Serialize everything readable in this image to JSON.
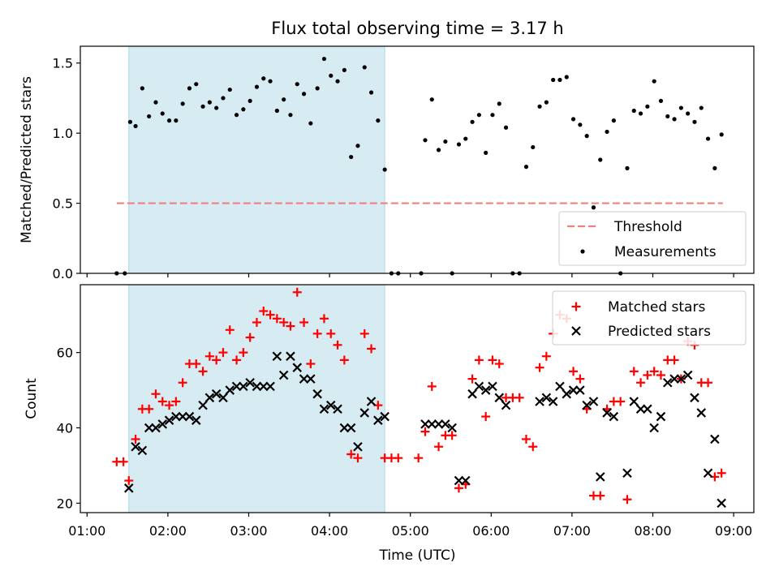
{
  "title": "Flux total observing time = 3.17 h",
  "xlabel": "Time (UTC)",
  "x_ticks": [
    "01:00",
    "02:00",
    "03:00",
    "04:00",
    "05:00",
    "06:00",
    "07:00",
    "08:00",
    "09:00"
  ],
  "colors": {
    "span": "#add8e6",
    "threshold": "#f08080",
    "measurement": "#000000",
    "matched": "#ff0000",
    "predicted": "#000000"
  },
  "chart_data": [
    {
      "type": "scatter",
      "ylabel": "Matched/Predicted stars",
      "y_ticks": [
        "0.0",
        "0.5",
        "1.0",
        "1.5"
      ],
      "xlim": [
        "00:55",
        "09:15"
      ],
      "ylim": [
        0,
        1.62
      ],
      "shaded_span": [
        "01:31",
        "04:41"
      ],
      "legend": {
        "position": "lower-right",
        "entries": [
          "Threshold",
          "Measurements"
        ]
      },
      "threshold": {
        "name": "Threshold",
        "y": 0.5,
        "x_range": [
          "01:22",
          "08:52"
        ]
      },
      "measurements": {
        "name": "Measurements",
        "points": [
          [
            "01:22",
            0.0
          ],
          [
            "01:28",
            0.0
          ],
          [
            "01:32",
            1.08
          ],
          [
            "01:36",
            1.05
          ],
          [
            "01:41",
            1.32
          ],
          [
            "01:46",
            1.12
          ],
          [
            "01:51",
            1.22
          ],
          [
            "01:56",
            1.14
          ],
          [
            "02:01",
            1.09
          ],
          [
            "02:06",
            1.09
          ],
          [
            "02:11",
            1.21
          ],
          [
            "02:16",
            1.32
          ],
          [
            "02:21",
            1.35
          ],
          [
            "02:26",
            1.19
          ],
          [
            "02:31",
            1.22
          ],
          [
            "02:36",
            1.18
          ],
          [
            "02:41",
            1.25
          ],
          [
            "02:46",
            1.31
          ],
          [
            "02:51",
            1.13
          ],
          [
            "02:56",
            1.17
          ],
          [
            "03:01",
            1.23
          ],
          [
            "03:06",
            1.33
          ],
          [
            "03:11",
            1.39
          ],
          [
            "03:16",
            1.37
          ],
          [
            "03:21",
            1.16
          ],
          [
            "03:26",
            1.24
          ],
          [
            "03:31",
            1.13
          ],
          [
            "03:36",
            1.35
          ],
          [
            "03:41",
            1.28
          ],
          [
            "03:46",
            1.07
          ],
          [
            "03:51",
            1.32
          ],
          [
            "03:56",
            1.53
          ],
          [
            "04:01",
            1.41
          ],
          [
            "04:06",
            1.37
          ],
          [
            "04:11",
            1.45
          ],
          [
            "04:16",
            0.83
          ],
          [
            "04:21",
            0.91
          ],
          [
            "04:26",
            1.47
          ],
          [
            "04:31",
            1.29
          ],
          [
            "04:36",
            1.09
          ],
          [
            "04:41",
            0.74
          ],
          [
            "04:46",
            0.0
          ],
          [
            "04:51",
            0.0
          ],
          [
            "05:08",
            0.0
          ],
          [
            "05:11",
            0.95
          ],
          [
            "05:16",
            1.24
          ],
          [
            "05:21",
            0.88
          ],
          [
            "05:26",
            0.94
          ],
          [
            "05:31",
            0.0
          ],
          [
            "05:36",
            0.92
          ],
          [
            "05:41",
            0.96
          ],
          [
            "05:46",
            1.08
          ],
          [
            "05:51",
            1.13
          ],
          [
            "05:56",
            0.86
          ],
          [
            "06:01",
            1.13
          ],
          [
            "06:06",
            1.21
          ],
          [
            "06:11",
            1.04
          ],
          [
            "06:16",
            0.0
          ],
          [
            "06:21",
            0.0
          ],
          [
            "06:26",
            0.76
          ],
          [
            "06:31",
            0.9
          ],
          [
            "06:36",
            1.19
          ],
          [
            "06:41",
            1.22
          ],
          [
            "06:46",
            1.38
          ],
          [
            "06:51",
            1.38
          ],
          [
            "06:56",
            1.4
          ],
          [
            "07:01",
            1.1
          ],
          [
            "07:06",
            1.06
          ],
          [
            "07:11",
            0.98
          ],
          [
            "07:16",
            0.47
          ],
          [
            "07:21",
            0.81
          ],
          [
            "07:26",
            1.01
          ],
          [
            "07:31",
            1.09
          ],
          [
            "07:36",
            0.0
          ],
          [
            "07:41",
            0.75
          ],
          [
            "07:46",
            1.16
          ],
          [
            "07:51",
            1.14
          ],
          [
            "07:56",
            1.19
          ],
          [
            "08:01",
            1.37
          ],
          [
            "08:06",
            1.23
          ],
          [
            "08:11",
            1.12
          ],
          [
            "08:16",
            1.1
          ],
          [
            "08:21",
            1.18
          ],
          [
            "08:26",
            1.14
          ],
          [
            "08:31",
            1.08
          ],
          [
            "08:36",
            1.18
          ],
          [
            "08:41",
            0.96
          ],
          [
            "08:46",
            0.75
          ],
          [
            "08:51",
            0.99
          ]
        ]
      }
    },
    {
      "type": "scatter",
      "ylabel": "Count",
      "y_ticks": [
        "20",
        "40",
        "60"
      ],
      "xlim": [
        "00:55",
        "09:15"
      ],
      "ylim": [
        17.5,
        78
      ],
      "shaded_span": [
        "01:31",
        "04:41"
      ],
      "legend": {
        "position": "upper-right",
        "entries": [
          "Matched stars",
          "Predicted stars"
        ]
      },
      "series": [
        {
          "name": "Matched stars",
          "marker": "plus",
          "points": [
            [
              "01:22",
              31
            ],
            [
              "01:27",
              31
            ],
            [
              "01:31",
              26
            ],
            [
              "01:36",
              37
            ],
            [
              "01:41",
              45
            ],
            [
              "01:46",
              45
            ],
            [
              "01:51",
              49
            ],
            [
              "01:56",
              47
            ],
            [
              "02:01",
              46
            ],
            [
              "02:06",
              47
            ],
            [
              "02:11",
              52
            ],
            [
              "02:16",
              57
            ],
            [
              "02:21",
              57
            ],
            [
              "02:26",
              55
            ],
            [
              "02:31",
              59
            ],
            [
              "02:36",
              58
            ],
            [
              "02:41",
              60
            ],
            [
              "02:46",
              66
            ],
            [
              "02:51",
              58
            ],
            [
              "02:56",
              60
            ],
            [
              "03:01",
              64
            ],
            [
              "03:06",
              68
            ],
            [
              "03:11",
              71
            ],
            [
              "03:16",
              70
            ],
            [
              "03:21",
              69
            ],
            [
              "03:26",
              68
            ],
            [
              "03:31",
              67
            ],
            [
              "03:36",
              76
            ],
            [
              "03:41",
              68
            ],
            [
              "03:46",
              57
            ],
            [
              "03:51",
              65
            ],
            [
              "03:56",
              69
            ],
            [
              "04:01",
              65
            ],
            [
              "04:06",
              62
            ],
            [
              "04:11",
              58
            ],
            [
              "04:16",
              33
            ],
            [
              "04:21",
              32
            ],
            [
              "04:26",
              65
            ],
            [
              "04:31",
              61
            ],
            [
              "04:36",
              46
            ],
            [
              "04:41",
              32
            ],
            [
              "04:46",
              32
            ],
            [
              "04:51",
              32
            ],
            [
              "05:06",
              32
            ],
            [
              "05:11",
              39
            ],
            [
              "05:16",
              51
            ],
            [
              "05:21",
              35
            ],
            [
              "05:26",
              38
            ],
            [
              "05:31",
              38
            ],
            [
              "05:36",
              24
            ],
            [
              "05:41",
              25
            ],
            [
              "05:46",
              53
            ],
            [
              "05:51",
              58
            ],
            [
              "05:56",
              43
            ],
            [
              "06:01",
              58
            ],
            [
              "06:06",
              57
            ],
            [
              "06:11",
              48
            ],
            [
              "06:16",
              48
            ],
            [
              "06:21",
              48
            ],
            [
              "06:26",
              37
            ],
            [
              "06:31",
              35
            ],
            [
              "06:36",
              56
            ],
            [
              "06:41",
              59
            ],
            [
              "06:46",
              65
            ],
            [
              "06:51",
              70
            ],
            [
              "06:56",
              69
            ],
            [
              "07:01",
              55
            ],
            [
              "07:06",
              53
            ],
            [
              "07:11",
              45
            ],
            [
              "07:16",
              22
            ],
            [
              "07:21",
              22
            ],
            [
              "07:26",
              45
            ],
            [
              "07:31",
              47
            ],
            [
              "07:36",
              47
            ],
            [
              "07:41",
              21
            ],
            [
              "07:46",
              55
            ],
            [
              "07:51",
              52
            ],
            [
              "07:56",
              54
            ],
            [
              "08:01",
              55
            ],
            [
              "08:06",
              54
            ],
            [
              "08:11",
              58
            ],
            [
              "08:16",
              58
            ],
            [
              "08:21",
              53
            ],
            [
              "08:26",
              63
            ],
            [
              "08:31",
              62
            ],
            [
              "08:36",
              52
            ],
            [
              "08:41",
              52
            ],
            [
              "08:46",
              27
            ],
            [
              "08:51",
              28
            ]
          ]
        },
        {
          "name": "Predicted stars",
          "marker": "x",
          "points": [
            [
              "01:31",
              24
            ],
            [
              "01:36",
              35
            ],
            [
              "01:41",
              34
            ],
            [
              "01:46",
              40
            ],
            [
              "01:51",
              40
            ],
            [
              "01:56",
              41
            ],
            [
              "02:01",
              42
            ],
            [
              "02:06",
              43
            ],
            [
              "02:11",
              43
            ],
            [
              "02:16",
              43
            ],
            [
              "02:21",
              42
            ],
            [
              "02:26",
              46
            ],
            [
              "02:31",
              48
            ],
            [
              "02:36",
              49
            ],
            [
              "02:41",
              48
            ],
            [
              "02:46",
              50
            ],
            [
              "02:51",
              51
            ],
            [
              "02:56",
              51
            ],
            [
              "03:01",
              52
            ],
            [
              "03:06",
              51
            ],
            [
              "03:11",
              51
            ],
            [
              "03:16",
              51
            ],
            [
              "03:21",
              59
            ],
            [
              "03:26",
              54
            ],
            [
              "03:31",
              59
            ],
            [
              "03:36",
              56
            ],
            [
              "03:41",
              53
            ],
            [
              "03:46",
              53
            ],
            [
              "03:51",
              49
            ],
            [
              "03:56",
              45
            ],
            [
              "04:01",
              46
            ],
            [
              "04:06",
              45
            ],
            [
              "04:11",
              40
            ],
            [
              "04:16",
              40
            ],
            [
              "04:21",
              35
            ],
            [
              "04:26",
              44
            ],
            [
              "04:31",
              47
            ],
            [
              "04:36",
              42
            ],
            [
              "04:41",
              43
            ],
            [
              "05:11",
              41
            ],
            [
              "05:16",
              41
            ],
            [
              "05:21",
              41
            ],
            [
              "05:26",
              41
            ],
            [
              "05:31",
              40
            ],
            [
              "05:36",
              26
            ],
            [
              "05:41",
              26
            ],
            [
              "05:46",
              49
            ],
            [
              "05:51",
              51
            ],
            [
              "05:56",
              50
            ],
            [
              "06:01",
              51
            ],
            [
              "06:06",
              48
            ],
            [
              "06:11",
              46
            ],
            [
              "06:36",
              47
            ],
            [
              "06:41",
              48
            ],
            [
              "06:46",
              47
            ],
            [
              "06:51",
              51
            ],
            [
              "06:56",
              49
            ],
            [
              "07:01",
              50
            ],
            [
              "07:06",
              50
            ],
            [
              "07:11",
              46
            ],
            [
              "07:16",
              47
            ],
            [
              "07:21",
              27
            ],
            [
              "07:26",
              44
            ],
            [
              "07:31",
              43
            ],
            [
              "07:41",
              28
            ],
            [
              "07:46",
              47
            ],
            [
              "07:51",
              45
            ],
            [
              "07:56",
              45
            ],
            [
              "08:01",
              40
            ],
            [
              "08:06",
              43
            ],
            [
              "08:11",
              52
            ],
            [
              "08:16",
              53
            ],
            [
              "08:21",
              53
            ],
            [
              "08:26",
              54
            ],
            [
              "08:31",
              48
            ],
            [
              "08:36",
              44
            ],
            [
              "08:41",
              28
            ],
            [
              "08:46",
              37
            ],
            [
              "08:51",
              20
            ]
          ]
        }
      ]
    }
  ]
}
